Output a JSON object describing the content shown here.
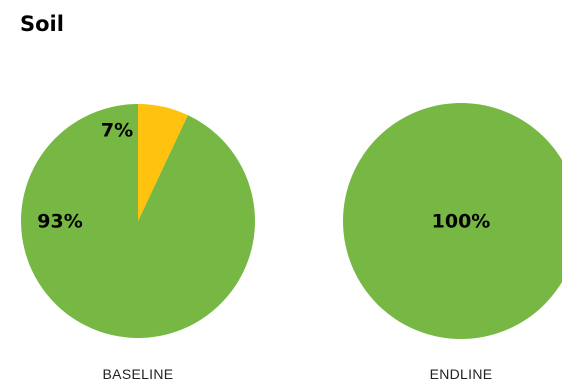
{
  "chart_data": {
    "type": "pie",
    "title": "Soil",
    "colors": [
      "#76b843",
      "#ffc20e"
    ],
    "charts": [
      {
        "category": "BASELINE",
        "slices": [
          {
            "value": 93,
            "label": "93%"
          },
          {
            "value": 7,
            "label": "7%"
          }
        ]
      },
      {
        "category": "ENDLINE",
        "slices": [
          {
            "value": 100,
            "label": "100%"
          }
        ]
      }
    ]
  }
}
